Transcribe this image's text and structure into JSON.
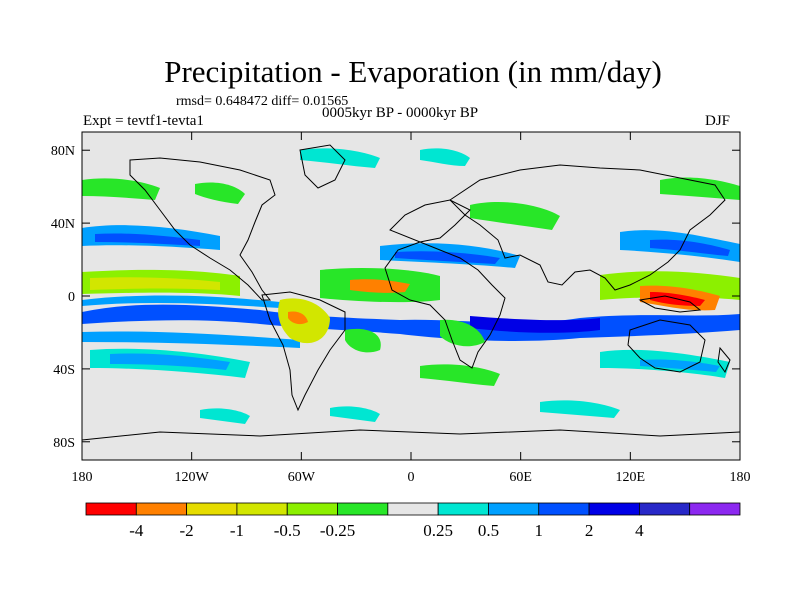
{
  "title": "Precipitation - Evaporation (in mm/day)",
  "stats": "rmsd= 0.648472 diff= 0.01565",
  "period": "0005kyr BP - 0000kyr BP",
  "experiment": "Expt = tevtf1-tevta1",
  "season": "DJF",
  "map": {
    "lon_range": [
      -180,
      180
    ],
    "lat_range": [
      -90,
      90
    ],
    "x_ticks": [
      {
        "value": -180,
        "label": "180"
      },
      {
        "value": -120,
        "label": "120W"
      },
      {
        "value": -60,
        "label": "60W"
      },
      {
        "value": 0,
        "label": "0"
      },
      {
        "value": 60,
        "label": "60E"
      },
      {
        "value": 120,
        "label": "120E"
      },
      {
        "value": 180,
        "label": "180"
      }
    ],
    "y_ticks": [
      {
        "value": 80,
        "label": "80N"
      },
      {
        "value": 40,
        "label": "40N"
      },
      {
        "value": 0,
        "label": "0"
      },
      {
        "value": -40,
        "label": "40S"
      },
      {
        "value": -80,
        "label": "80S"
      }
    ],
    "background_color": "#e6e6e6"
  },
  "colorbar": {
    "colors": [
      "#ff0000",
      "#ff8000",
      "#e6dc00",
      "#d2e600",
      "#8cf000",
      "#28e628",
      "#e6e6e6",
      "#00e6d2",
      "#00a0ff",
      "#0050ff",
      "#0000e6",
      "#2828c8",
      "#8c28f0"
    ],
    "labels": [
      "-4",
      "-2",
      "-1",
      "-0.5",
      "-0.25",
      "0.25",
      "0.5",
      "1",
      "2",
      "4"
    ]
  }
}
